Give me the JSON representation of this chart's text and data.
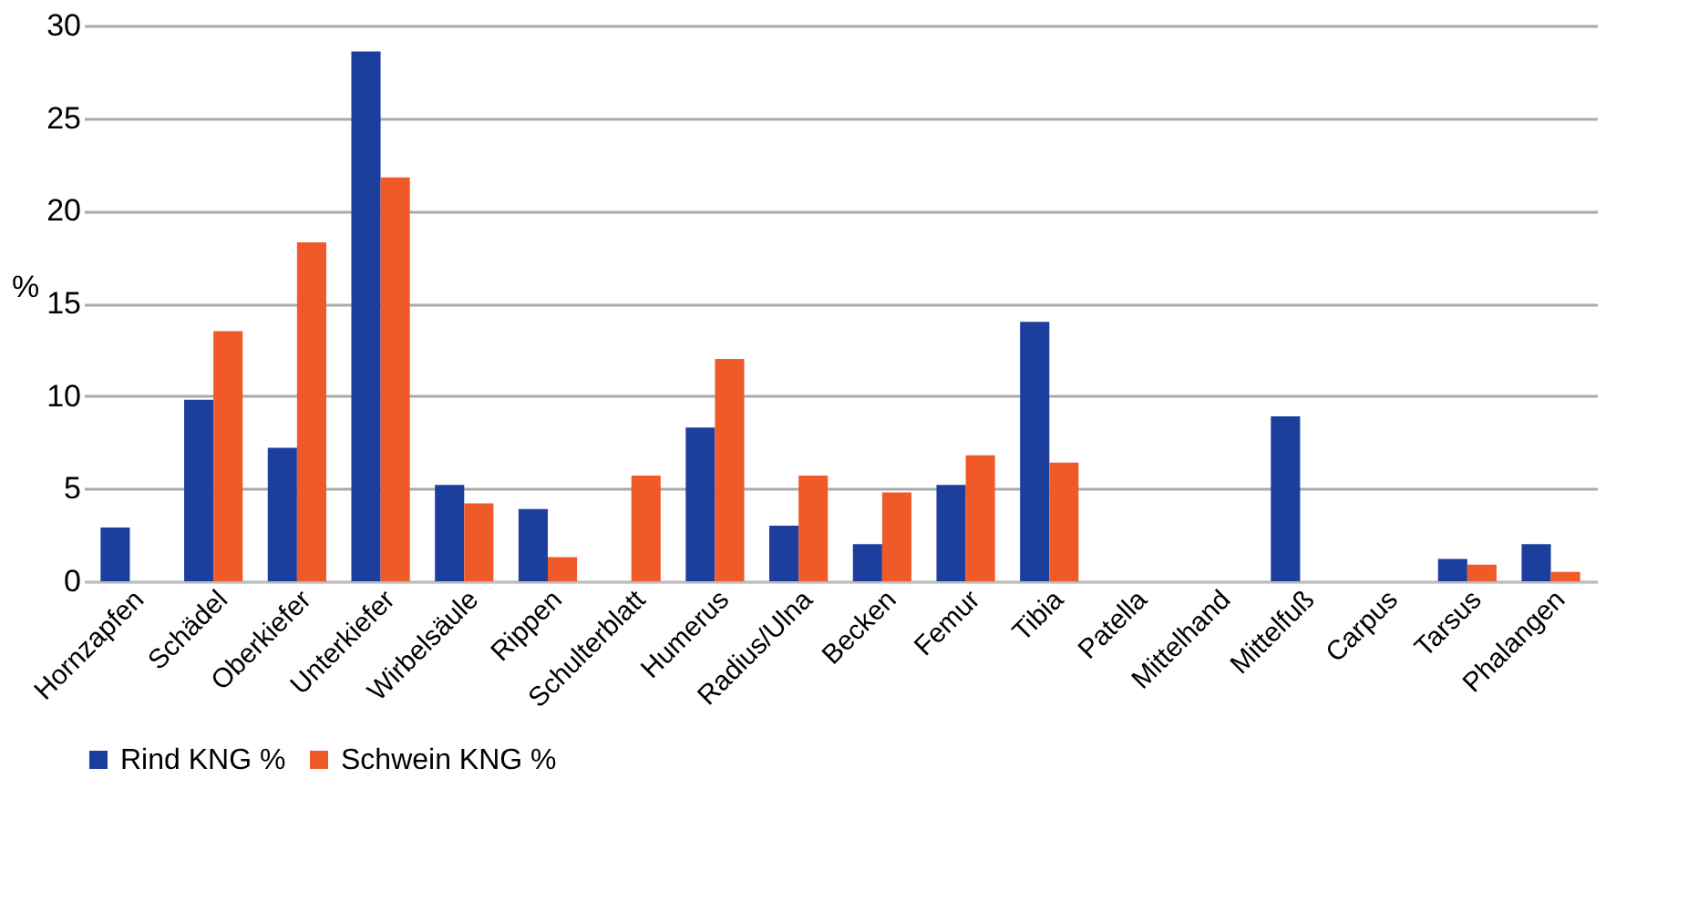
{
  "chart_data": {
    "type": "bar",
    "ylabel": "%",
    "categories": [
      "Hornzapfen",
      "Schädel",
      "Oberkiefer",
      "Unterkiefer",
      "Wirbelsäule",
      "Rippen",
      "Schulterblatt",
      "Humerus",
      "Radius/Ulna",
      "Becken",
      "Femur",
      "Tibia",
      "Patella",
      "Mittelhand",
      "Mittelfuß",
      "Carpus",
      "Tarsus",
      "Phalangen"
    ],
    "series": [
      {
        "name": "Rind KNG %",
        "color": "#1c3f9e",
        "values": [
          2.9,
          9.8,
          7.2,
          28.6,
          5.2,
          3.9,
          0,
          8.3,
          3.0,
          2.0,
          5.2,
          14.0,
          0,
          0,
          8.9,
          0,
          1.2,
          2.0
        ]
      },
      {
        "name": "Schwein KNG %",
        "color": "#f05a28",
        "values": [
          0,
          13.5,
          18.3,
          21.8,
          4.2,
          1.3,
          5.7,
          12.0,
          5.7,
          4.8,
          6.8,
          6.4,
          0,
          0,
          0,
          0,
          0.9,
          0.5
        ]
      }
    ],
    "ylim": [
      0,
      30
    ],
    "yticks": [
      0,
      5,
      10,
      15,
      20,
      25,
      30
    ],
    "grid": "y",
    "legend": "bottom"
  }
}
